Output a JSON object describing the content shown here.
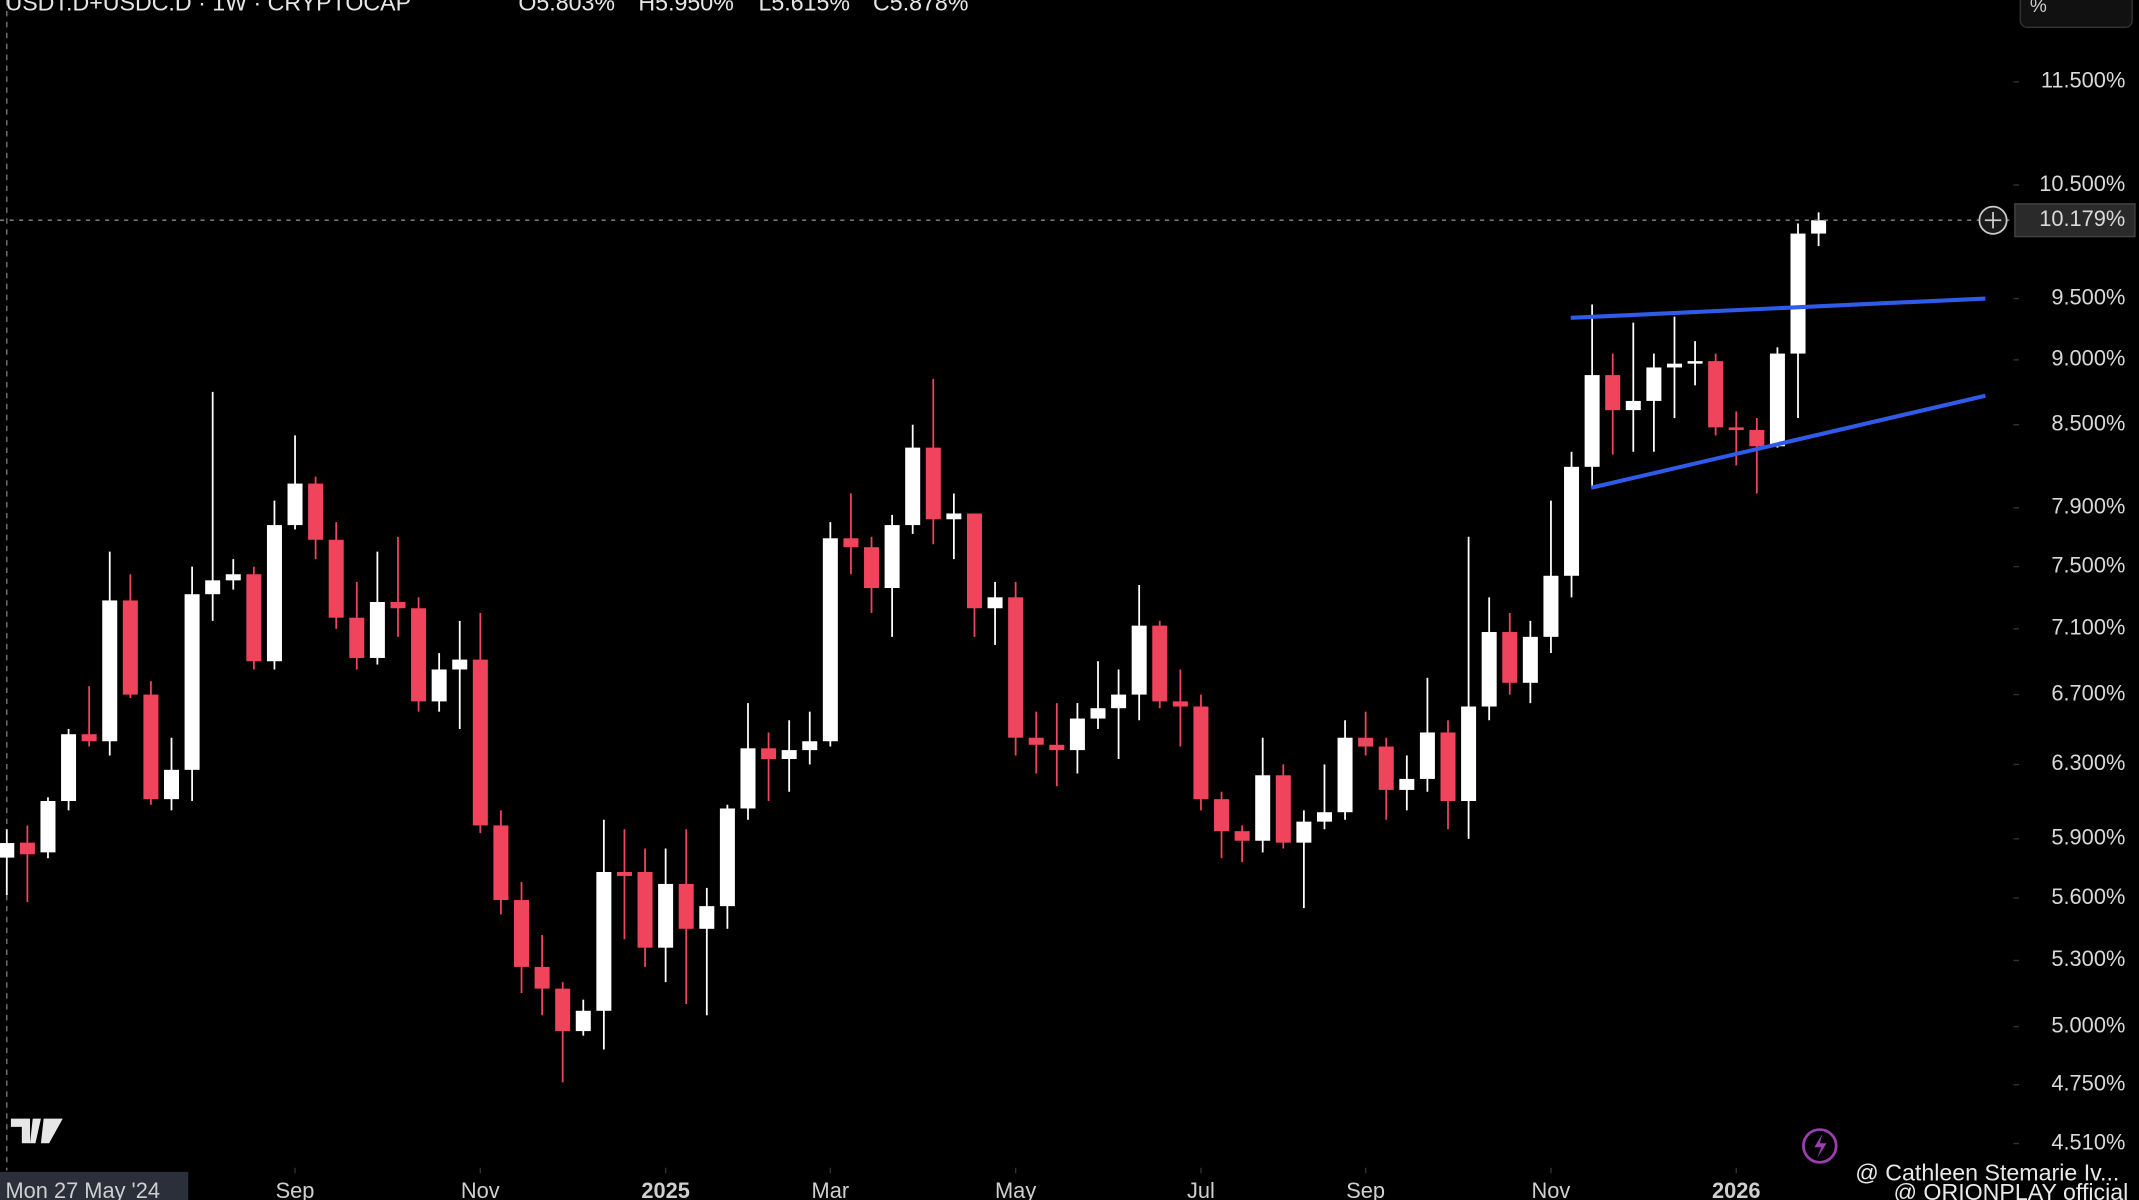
{
  "chart_data": {
    "type": "candlestick",
    "symbol": "USDT.D+USDC.D · 1W · CRYPTOCAP",
    "ohlc_labels": [
      "O5.803%",
      "H5.950%",
      "L5.615%",
      "C5.878%"
    ],
    "last_price_label": "10.179%",
    "crosshair_label": "Mon 27 May '24",
    "scale_button": "%",
    "watermarks": [
      "@ Cathleen Stemarie Iv...",
      "@ ORIONPLAY official"
    ],
    "log_scale": true,
    "up_color": "#ffffff",
    "down_color": "#f0445c",
    "open": [
      5.803,
      5.88,
      5.83,
      6.1,
      6.47,
      6.43,
      7.28,
      6.7,
      6.11,
      6.27,
      7.32,
      7.41,
      7.45,
      6.9,
      7.78,
      8.07,
      7.68,
      7.17,
      6.92,
      7.27,
      7.23,
      6.66,
      6.85,
      6.91,
      5.97,
      5.59,
      5.27,
      5.17,
      4.98,
      5.07,
      5.73,
      5.73,
      5.36,
      5.67,
      5.45,
      5.56,
      6.06,
      6.39,
      6.33,
      6.38,
      6.43,
      7.69,
      7.63,
      7.36,
      7.78,
      8.33,
      7.82,
      7.86,
      7.23,
      7.3,
      6.45,
      6.41,
      6.38,
      6.56,
      6.62,
      6.7,
      7.12,
      6.66,
      6.63,
      6.11,
      5.94,
      5.89,
      6.24,
      5.88,
      5.99,
      6.04,
      6.45,
      6.4,
      6.16,
      6.22,
      6.48,
      6.1,
      6.63,
      7.08,
      6.77,
      7.05,
      7.44,
      8.19,
      8.88,
      8.61,
      8.68,
      8.94,
      8.97,
      8.99,
      8.48,
      8.46,
      8.34,
      9.05,
      10.06
    ],
    "high": [
      5.95,
      5.97,
      6.12,
      6.5,
      6.75,
      7.6,
      7.45,
      6.78,
      6.45,
      7.5,
      8.75,
      7.55,
      7.5,
      7.95,
      8.42,
      8.12,
      7.8,
      7.4,
      7.6,
      7.7,
      7.3,
      6.95,
      7.15,
      7.2,
      6.05,
      5.68,
      5.42,
      5.2,
      5.12,
      6.0,
      5.95,
      5.85,
      5.85,
      5.95,
      5.65,
      6.08,
      6.65,
      6.48,
      6.55,
      6.6,
      7.8,
      8.0,
      7.7,
      7.85,
      8.5,
      8.85,
      8.0,
      7.85,
      7.4,
      7.4,
      6.6,
      6.65,
      6.65,
      6.9,
      6.85,
      7.38,
      7.15,
      6.85,
      6.7,
      6.15,
      5.97,
      6.45,
      6.3,
      6.05,
      6.3,
      6.55,
      6.6,
      6.45,
      6.35,
      6.8,
      6.55,
      7.7,
      7.3,
      7.2,
      7.15,
      7.95,
      8.3,
      9.45,
      9.05,
      9.3,
      9.05,
      9.35,
      9.15,
      9.05,
      8.6,
      8.55,
      9.1,
      10.15,
      10.25
    ],
    "low": [
      5.615,
      5.58,
      5.8,
      6.05,
      6.4,
      6.35,
      6.68,
      6.08,
      6.05,
      6.1,
      7.15,
      7.35,
      6.85,
      6.85,
      7.75,
      7.55,
      7.1,
      6.85,
      6.88,
      7.05,
      6.6,
      6.6,
      6.5,
      5.93,
      5.52,
      5.15,
      5.05,
      4.76,
      4.96,
      4.9,
      5.4,
      5.27,
      5.2,
      5.1,
      5.05,
      5.45,
      6.0,
      6.1,
      6.15,
      6.3,
      6.4,
      7.45,
      7.2,
      7.05,
      7.72,
      7.65,
      7.55,
      7.05,
      7.0,
      6.35,
      6.25,
      6.18,
      6.25,
      6.5,
      6.33,
      6.55,
      6.62,
      6.4,
      6.05,
      5.8,
      5.78,
      5.83,
      5.85,
      5.55,
      5.95,
      6.0,
      6.35,
      6.0,
      6.05,
      6.15,
      5.95,
      5.9,
      6.55,
      6.7,
      6.65,
      6.95,
      7.3,
      8.05,
      8.28,
      8.3,
      8.3,
      8.55,
      8.8,
      8.42,
      8.2,
      8.0,
      8.33,
      8.55,
      9.95
    ],
    "close": [
      5.878,
      5.82,
      6.1,
      6.47,
      6.43,
      7.28,
      6.7,
      6.11,
      6.27,
      7.32,
      7.41,
      7.45,
      6.9,
      7.78,
      8.07,
      7.68,
      7.17,
      6.92,
      7.27,
      7.23,
      6.66,
      6.85,
      6.91,
      5.97,
      5.59,
      5.27,
      5.17,
      4.98,
      5.07,
      5.73,
      5.71,
      5.36,
      5.67,
      5.45,
      5.56,
      6.06,
      6.39,
      6.33,
      6.38,
      6.43,
      7.69,
      7.63,
      7.36,
      7.78,
      8.33,
      7.82,
      7.86,
      7.23,
      7.3,
      6.45,
      6.41,
      6.38,
      6.56,
      6.62,
      6.7,
      7.12,
      6.66,
      6.63,
      6.11,
      5.94,
      5.89,
      6.24,
      5.88,
      5.99,
      6.04,
      6.45,
      6.4,
      6.16,
      6.22,
      6.48,
      6.1,
      6.63,
      7.08,
      6.77,
      7.05,
      7.44,
      8.19,
      8.88,
      8.61,
      8.68,
      8.94,
      8.97,
      8.99,
      8.48,
      8.46,
      8.34,
      9.05,
      10.06,
      10.179
    ],
    "xlim": [
      -0.33,
      97.4
    ],
    "ylim": [
      4.42,
      12.36
    ],
    "xticks": [
      {
        "value": 14,
        "label": "Sep"
      },
      {
        "value": 23,
        "label": "Nov"
      },
      {
        "value": 32,
        "label": "2025"
      },
      {
        "value": 40,
        "label": "Mar"
      },
      {
        "value": 49,
        "label": "May"
      },
      {
        "value": 58,
        "label": "Jul"
      },
      {
        "value": 66,
        "label": "Sep"
      },
      {
        "value": 75,
        "label": "Nov"
      },
      {
        "value": 84,
        "label": "2026"
      }
    ],
    "yticks": [
      {
        "value": 11.5,
        "label": "11.500%"
      },
      {
        "value": 10.5,
        "label": "10.500%"
      },
      {
        "value": 9.5,
        "label": "9.500%"
      },
      {
        "value": 9.0,
        "label": "9.000%"
      },
      {
        "value": 8.5,
        "label": "8.500%"
      },
      {
        "value": 7.9,
        "label": "7.900%"
      },
      {
        "value": 7.5,
        "label": "7.500%"
      },
      {
        "value": 7.1,
        "label": "7.100%"
      },
      {
        "value": 6.7,
        "label": "6.700%"
      },
      {
        "value": 6.3,
        "label": "6.300%"
      },
      {
        "value": 5.9,
        "label": "5.900%"
      },
      {
        "value": 5.6,
        "label": "5.600%"
      },
      {
        "value": 5.3,
        "label": "5.300%"
      },
      {
        "value": 5.0,
        "label": "5.000%"
      },
      {
        "value": 4.75,
        "label": "4.750%"
      },
      {
        "value": 4.51,
        "label": "4.510%"
      }
    ],
    "trendlines": [
      {
        "color": "#2f5be8",
        "x": [
          75.96,
          96.1
        ],
        "values": [
          9.34,
          9.5
        ]
      },
      {
        "color": "#2f5be8",
        "x": [
          76.95,
          96.1
        ],
        "values": [
          8.04,
          8.72
        ]
      }
    ]
  }
}
